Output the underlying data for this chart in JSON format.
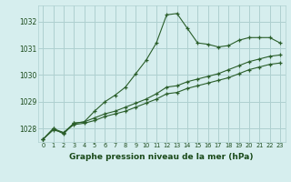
{
  "xlabel": "Graphe pression niveau de la mer (hPa)",
  "hours": [
    0,
    1,
    2,
    3,
    4,
    5,
    6,
    7,
    8,
    9,
    10,
    11,
    12,
    13,
    14,
    15,
    16,
    17,
    18,
    19,
    20,
    21,
    22,
    23
  ],
  "line1": [
    1027.6,
    1028.0,
    1027.8,
    1028.2,
    1028.25,
    1028.65,
    1029.0,
    1029.25,
    1029.55,
    1030.05,
    1030.55,
    1031.2,
    1032.25,
    1032.3,
    1031.75,
    1031.2,
    1031.15,
    1031.05,
    1031.1,
    1031.3,
    1031.4,
    1031.4,
    1031.4,
    1031.2
  ],
  "line2": [
    1027.6,
    1028.0,
    1027.85,
    1028.2,
    1028.25,
    1028.4,
    1028.55,
    1028.65,
    1028.8,
    1028.95,
    1029.1,
    1029.3,
    1029.55,
    1029.6,
    1029.75,
    1029.85,
    1029.95,
    1030.05,
    1030.2,
    1030.35,
    1030.5,
    1030.6,
    1030.7,
    1030.75
  ],
  "line3": [
    1027.6,
    1027.95,
    1027.85,
    1028.15,
    1028.2,
    1028.3,
    1028.45,
    1028.55,
    1028.65,
    1028.8,
    1028.95,
    1029.1,
    1029.3,
    1029.35,
    1029.5,
    1029.6,
    1029.7,
    1029.8,
    1029.9,
    1030.05,
    1030.2,
    1030.3,
    1030.4,
    1030.45
  ],
  "line_color": "#2a5e2a",
  "bg_color": "#d6eeee",
  "grid_color": "#aed0d0",
  "text_color": "#1a4a1a",
  "ylim_min": 1027.5,
  "ylim_max": 1032.6,
  "yticks": [
    1028,
    1029,
    1030,
    1031,
    1032
  ]
}
